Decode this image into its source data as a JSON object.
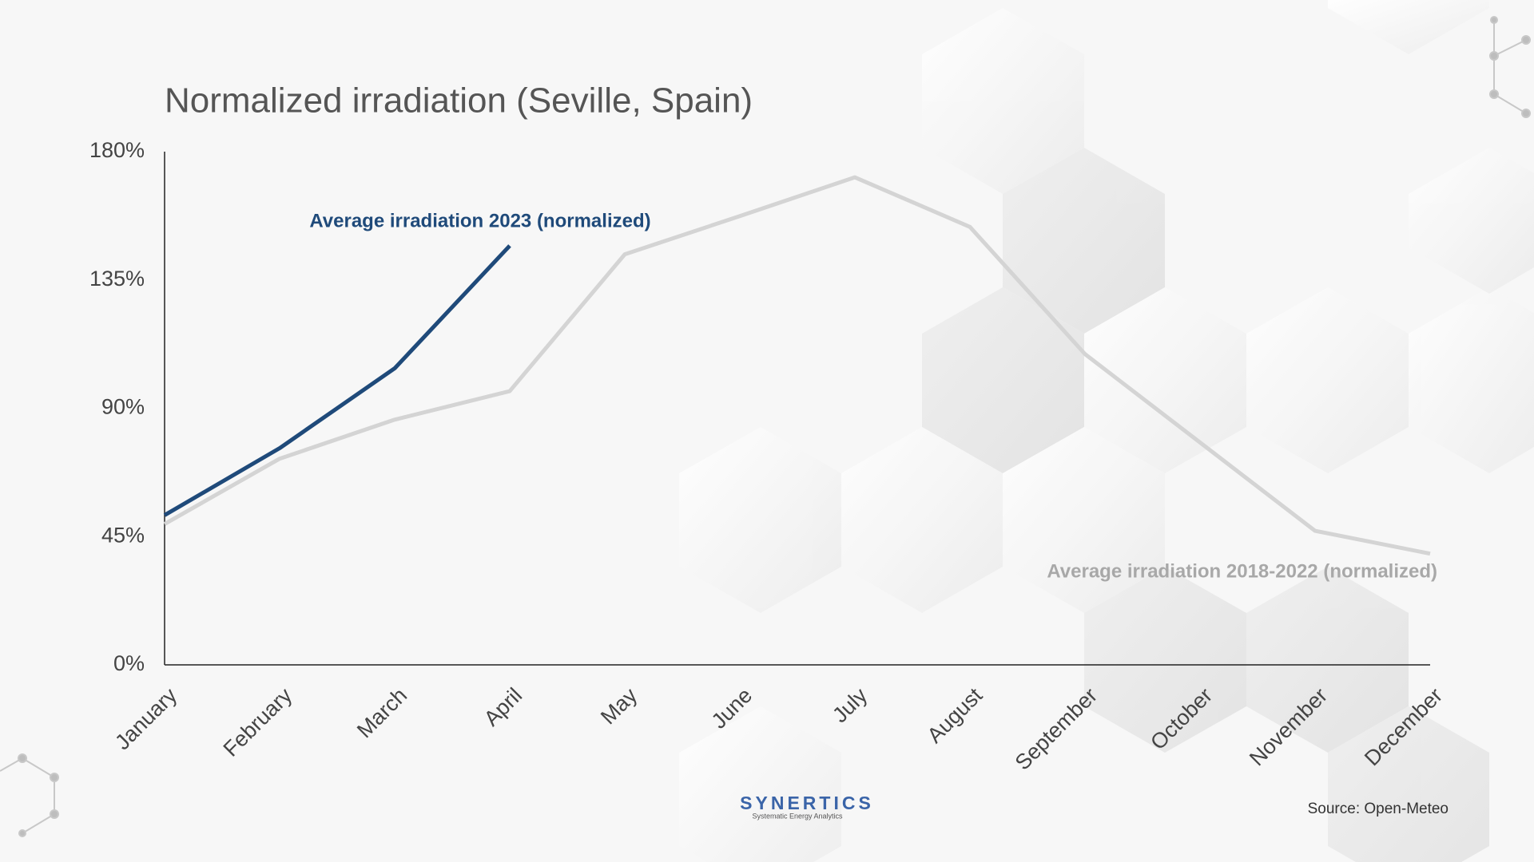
{
  "chart_data": {
    "type": "line",
    "title": "Normalized irradiation (Seville, Spain)",
    "categories": [
      "January",
      "February",
      "March",
      "April",
      "May",
      "June",
      "July",
      "August",
      "September",
      "October",
      "November",
      "December"
    ],
    "series": [
      {
        "name": "Average irradiation 2023 (normalized)",
        "color": "#1f4a7a",
        "values": [
          52.5,
          76,
          104,
          147,
          null,
          null,
          null,
          null,
          null,
          null,
          null,
          null
        ]
      },
      {
        "name": "Average irradiation 2018-2022 (normalized)",
        "color": "#d4d4d4",
        "label_color": "#a8a8a8",
        "values": [
          49.4,
          72.3,
          86,
          96,
          144,
          157.4,
          171,
          153.6,
          109,
          78,
          47,
          39
        ]
      }
    ],
    "ylim": [
      0,
      180
    ],
    "yticks": [
      {
        "value": 0,
        "label": "0%"
      },
      {
        "value": 45,
        "label": "45%"
      },
      {
        "value": 90,
        "label": "90%"
      },
      {
        "value": 135,
        "label": "135%"
      },
      {
        "value": 180,
        "label": "180%"
      }
    ],
    "grid": false,
    "brand": "SYNERTICS",
    "brand_tagline": "Systematic Energy Analytics",
    "source": "Source: Open-Meteo"
  }
}
